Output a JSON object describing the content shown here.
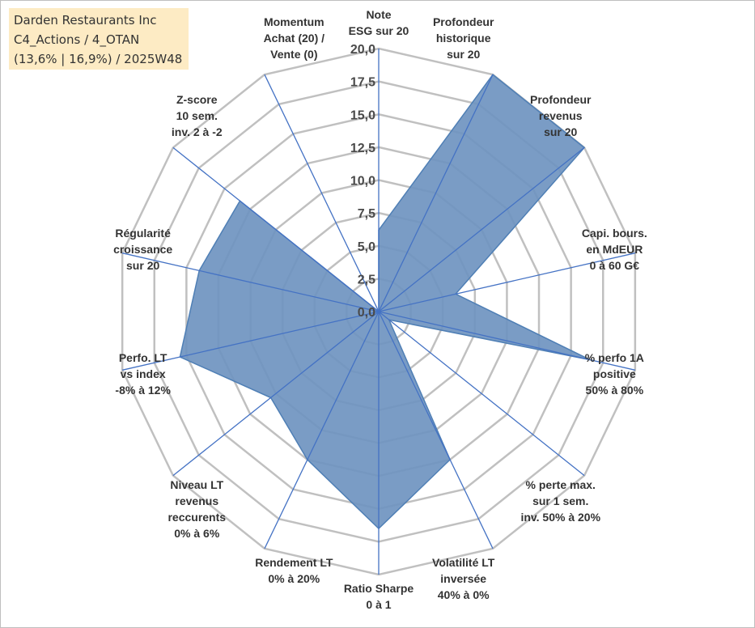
{
  "title": {
    "line1": "Darden Restaurants Inc",
    "line2": "C4_Actions / 4_OTAN",
    "line3": "(13,6% | 16,9%) / 2025W48"
  },
  "chart_data": {
    "type": "radar",
    "rmin": 0,
    "rmax": 20,
    "rings": [
      0,
      2.5,
      5,
      7.5,
      10,
      12.5,
      15,
      17.5,
      20
    ],
    "tick_labels": [
      "0,0",
      "2,5",
      "5,0",
      "7,5",
      "10,0",
      "12,5",
      "15,0",
      "17,5",
      "20,0"
    ],
    "axes": [
      {
        "label": [
          "Note",
          "ESG sur 20"
        ],
        "value": 6.2
      },
      {
        "label": [
          "Profondeur",
          "historique",
          "sur 20"
        ],
        "value": 20
      },
      {
        "label": [
          "Profondeur",
          "revenus",
          "sur 20"
        ],
        "value": 20
      },
      {
        "label": [
          "Capi. bours.",
          "en MdEUR",
          "0 à 60 G€"
        ],
        "value": 6
      },
      {
        "label": [
          "% perfo 1A",
          "positive",
          "50% à 80%"
        ],
        "value": 16.5
      },
      {
        "label": [
          "% perte max.",
          "sur 1 sem.",
          "inv. 50% à 20%"
        ],
        "value": 1
      },
      {
        "label": [
          "Volatilité LT",
          "inversée",
          "40% à 0%"
        ],
        "value": 12.5
      },
      {
        "label": [
          "Ratio Sharpe",
          "0 à 1"
        ],
        "value": 16.5
      },
      {
        "label": [
          "Rendement LT",
          "0% à 20%"
        ],
        "value": 12.5
      },
      {
        "label": [
          "Niveau LT",
          "revenus",
          "reccurents",
          "0% à 6%"
        ],
        "value": 10.5
      },
      {
        "label": [
          "Perfo. LT",
          "vs index",
          "-8% à 12%"
        ],
        "value": 15.5
      },
      {
        "label": [
          "Régularité",
          "croissance",
          "sur 20"
        ],
        "value": 14
      },
      {
        "label": [
          "Z-score",
          "10 sem.",
          "inv. 2 à -2"
        ],
        "value": 13.5
      },
      {
        "label": [
          "Momentum",
          "Achat (20) /",
          "Vente (0)"
        ],
        "value": 0
      }
    ],
    "series_color": "#4f7fb5",
    "series_fill": "#6f94c0",
    "grid_color": "#c0c0c0",
    "spoke_color": "#4472c4"
  }
}
